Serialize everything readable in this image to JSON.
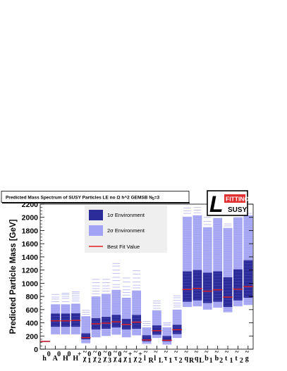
{
  "chart_data": {
    "type": "bar",
    "title": "Predicted Mass Spectrum of SUSY Particles LE no Ω h^2 GEMSB N",
    "title_sub": "5",
    "title_suffix": "=3",
    "ylabel": "Predicted Particle Mass [GeV]",
    "ylim": [
      0,
      2200
    ],
    "yticks": [
      "0",
      "200",
      "400",
      "600",
      "800",
      "1000",
      "1200",
      "1400",
      "1600",
      "1800",
      "2000",
      "2200"
    ],
    "grid": false,
    "legend_position": "top-center",
    "legend": {
      "sigma1": "1σ Environment",
      "sigma2": "2σ Environment",
      "best": "Best Fit Value"
    },
    "colors": {
      "sigma1": "#2b2b9a",
      "sigma2": "#a3a3f5",
      "best": "#e0211d",
      "scan": "#b9b9ee"
    },
    "categories": [
      {
        "label": "h",
        "sup": "0",
        "sub": "",
        "tilde": false
      },
      {
        "label": "A",
        "sup": "0",
        "sub": "",
        "tilde": false
      },
      {
        "label": "H",
        "sup": "0",
        "sub": "",
        "tilde": false
      },
      {
        "label": "H",
        "sup": "+",
        "sub": "",
        "tilde": false
      },
      {
        "label": "χ",
        "sup": "0",
        "sub": "1",
        "tilde": true
      },
      {
        "label": "χ",
        "sup": "0",
        "sub": "2",
        "tilde": true
      },
      {
        "label": "χ",
        "sup": "0",
        "sub": "3",
        "tilde": true
      },
      {
        "label": "χ",
        "sup": "0",
        "sub": "4",
        "tilde": true
      },
      {
        "label": "χ",
        "sup": "+",
        "sub": "1",
        "tilde": true
      },
      {
        "label": "χ",
        "sup": "+",
        "sub": "2",
        "tilde": true
      },
      {
        "label": "l",
        "sup": "",
        "sub": "R",
        "tilde": true
      },
      {
        "label": "l",
        "sup": "",
        "sub": "L",
        "tilde": true
      },
      {
        "label": "τ",
        "sup": "",
        "sub": "1",
        "tilde": true
      },
      {
        "label": "τ",
        "sup": "",
        "sub": "2",
        "tilde": true
      },
      {
        "label": "q",
        "sup": "",
        "sub": "R",
        "tilde": true
      },
      {
        "label": "q",
        "sup": "",
        "sub": "L",
        "tilde": true
      },
      {
        "label": "b",
        "sup": "",
        "sub": "1",
        "tilde": true
      },
      {
        "label": "b",
        "sup": "",
        "sub": "2",
        "tilde": true
      },
      {
        "label": "t",
        "sup": "",
        "sub": "1",
        "tilde": true
      },
      {
        "label": "t",
        "sup": "",
        "sub": "2",
        "tilde": true
      },
      {
        "label": "g",
        "sup": "",
        "sub": "",
        "tilde": true
      }
    ],
    "series": [
      {
        "name": "1σ Environment",
        "ranges": [
          [
            110,
            125
          ],
          [
            340,
            540
          ],
          [
            340,
            540
          ],
          [
            340,
            545
          ],
          [
            150,
            240
          ],
          [
            300,
            470
          ],
          [
            310,
            490
          ],
          [
            330,
            520
          ],
          [
            300,
            460
          ],
          [
            310,
            520
          ],
          [
            120,
            210
          ],
          [
            220,
            360
          ],
          [
            120,
            200
          ],
          [
            230,
            370
          ],
          [
            720,
            1180
          ],
          [
            740,
            1200
          ],
          [
            700,
            1160
          ],
          [
            720,
            1180
          ],
          [
            640,
            1090
          ],
          [
            740,
            1210
          ],
          [
            780,
            1350
          ]
        ]
      },
      {
        "name": "2σ Environment",
        "ranges": [
          [
            110,
            125
          ],
          [
            225,
            680
          ],
          [
            225,
            680
          ],
          [
            225,
            690
          ],
          [
            90,
            500
          ],
          [
            180,
            800
          ],
          [
            200,
            840
          ],
          [
            220,
            900
          ],
          [
            180,
            780
          ],
          [
            210,
            890
          ],
          [
            80,
            330
          ],
          [
            170,
            590
          ],
          [
            70,
            330
          ],
          [
            170,
            600
          ],
          [
            640,
            2010
          ],
          [
            650,
            2030
          ],
          [
            600,
            1850
          ],
          [
            630,
            1990
          ],
          [
            560,
            1840
          ],
          [
            650,
            2000
          ],
          [
            670,
            2030
          ]
        ]
      },
      {
        "name": "Best Fit Value",
        "values": [
          118,
          430,
          430,
          435,
          175,
          385,
          395,
          415,
          375,
          410,
          140,
          280,
          135,
          295,
          905,
          920,
          880,
          900,
          790,
          910,
          950
        ]
      }
    ],
    "scan_lines_extra": [
      [],
      [
        720,
        760,
        790,
        830
      ],
      [
        720,
        770,
        800,
        830,
        850
      ],
      [
        730,
        760,
        790,
        820,
        850,
        870
      ],
      [
        530,
        560,
        590
      ],
      [
        840,
        880,
        920,
        960,
        1010,
        1060
      ],
      [
        880,
        920,
        960,
        1010,
        1060
      ],
      [
        940,
        980,
        1040,
        1090,
        1150,
        1200,
        1260,
        1300
      ],
      [
        820,
        860,
        900,
        950,
        1020,
        1080
      ],
      [
        930,
        970,
        1020,
        1080,
        1140,
        1190
      ],
      [
        360,
        390,
        420
      ],
      [
        620,
        660,
        700,
        730
      ],
      [
        360,
        380,
        400
      ],
      [
        640,
        670,
        700,
        740,
        780,
        810
      ],
      [
        2060,
        2100,
        2140
      ],
      [
        2070,
        2110,
        2150
      ],
      [
        1890,
        1940,
        2000
      ],
      [
        2030,
        2080,
        2120
      ],
      [
        1870,
        1900
      ],
      [
        2030,
        2060
      ],
      [
        2060
      ]
    ]
  },
  "logo": {
    "letter": "L",
    "top_text": "FITTINO",
    "bottom_text": "SUSY",
    "accent": "#e03030"
  }
}
